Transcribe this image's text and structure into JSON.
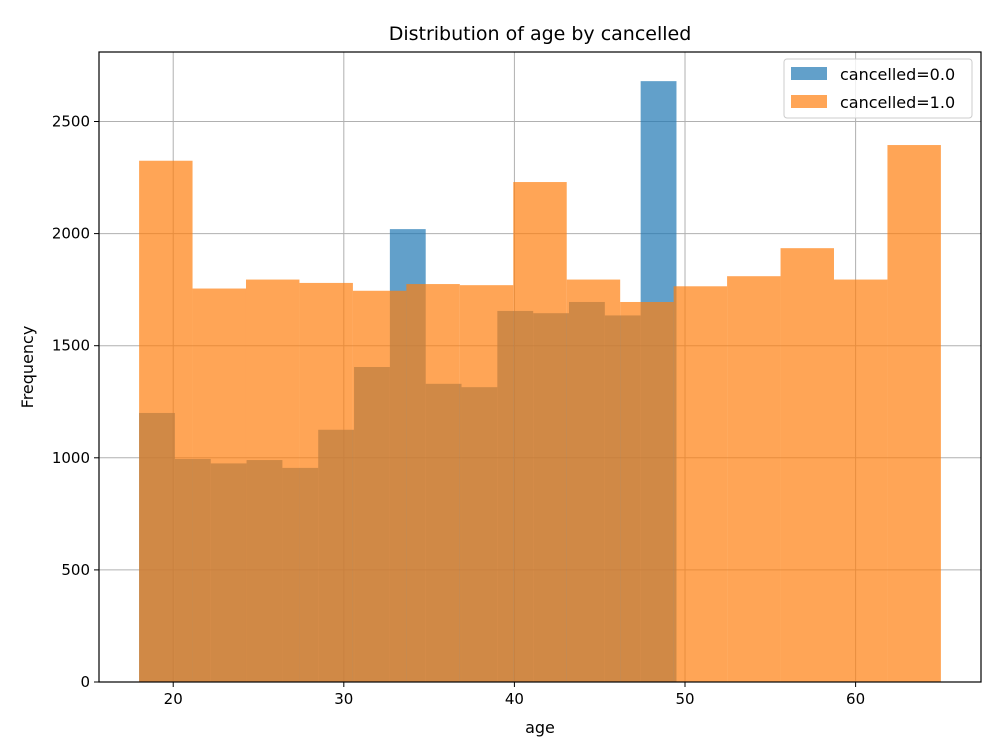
{
  "chart_data": {
    "type": "bar",
    "title": "Distribution of age by cancelled",
    "xlabel": "age",
    "ylabel": "Frequency",
    "xlim": [
      15.65,
      67.35
    ],
    "ylim": [
      0,
      2810
    ],
    "xticks": [
      20,
      30,
      40,
      50,
      60
    ],
    "yticks": [
      0,
      500,
      1000,
      1500,
      2000,
      2500
    ],
    "grid": true,
    "legend_position": "top-right",
    "series": [
      {
        "name": "cancelled=0.0",
        "color": "#1f77b4",
        "alpha": 0.7,
        "bin_start": 18,
        "bin_width": 2.1,
        "values": [
          1200,
          995,
          975,
          990,
          955,
          1125,
          1405,
          2020,
          1330,
          1315,
          1655,
          1645,
          1695,
          1635,
          2680
        ]
      },
      {
        "name": "cancelled=1.0",
        "color": "#ff7f0e",
        "alpha": 0.7,
        "bin_start": 18,
        "bin_width": 3.1333,
        "values": [
          2325,
          1755,
          1795,
          1780,
          1745,
          1775,
          1770,
          2230,
          1795,
          1695,
          1765,
          1810,
          1935,
          1795,
          2395
        ]
      }
    ]
  }
}
